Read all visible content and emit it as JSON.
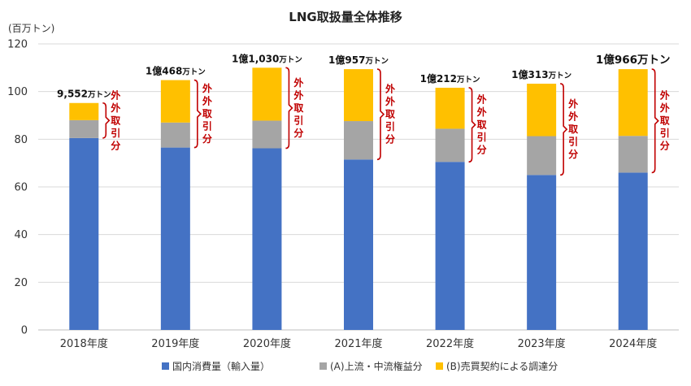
{
  "chart_data": {
    "type": "bar",
    "stacked": true,
    "title": "LNG取扱量全体推移",
    "yunit": "(百万トン)",
    "ylim": [
      0,
      120
    ],
    "yticks": [
      0,
      20,
      40,
      60,
      80,
      100,
      120
    ],
    "grid": true,
    "legend_position": "bottom",
    "categories": [
      "2018年度",
      "2019年度",
      "2020年度",
      "2021年度",
      "2022年度",
      "2023年度",
      "2024年度"
    ],
    "series": [
      {
        "name": "国内消費量（輸入量）",
        "color": "#4472C4",
        "values": [
          80.5,
          76.5,
          76.2,
          71.5,
          70.5,
          65.0,
          66.0
        ]
      },
      {
        "name": "(A)上流・中流権益分",
        "color": "#A5A5A5",
        "values": [
          7.5,
          10.5,
          11.6,
          16.1,
          13.9,
          16.3,
          15.4
        ]
      },
      {
        "name": "(B)売買契約による調達分",
        "color": "#FFC000",
        "values": [
          7.2,
          17.8,
          22.2,
          21.8,
          17.2,
          22.0,
          28.0
        ]
      }
    ],
    "total_labels": [
      {
        "main": "9,552",
        "unit": "万トン"
      },
      {
        "main": "1億468",
        "unit": "万トン"
      },
      {
        "main": "1億1,030",
        "unit": "万トン"
      },
      {
        "main": "1億957",
        "unit": "万トン"
      },
      {
        "main": "1億212",
        "unit": "万トン"
      },
      {
        "main": "1億313",
        "unit": "万トン"
      },
      {
        "main": "1億966万トン",
        "unit": ""
      }
    ],
    "bracket_label": "外外取引分"
  }
}
